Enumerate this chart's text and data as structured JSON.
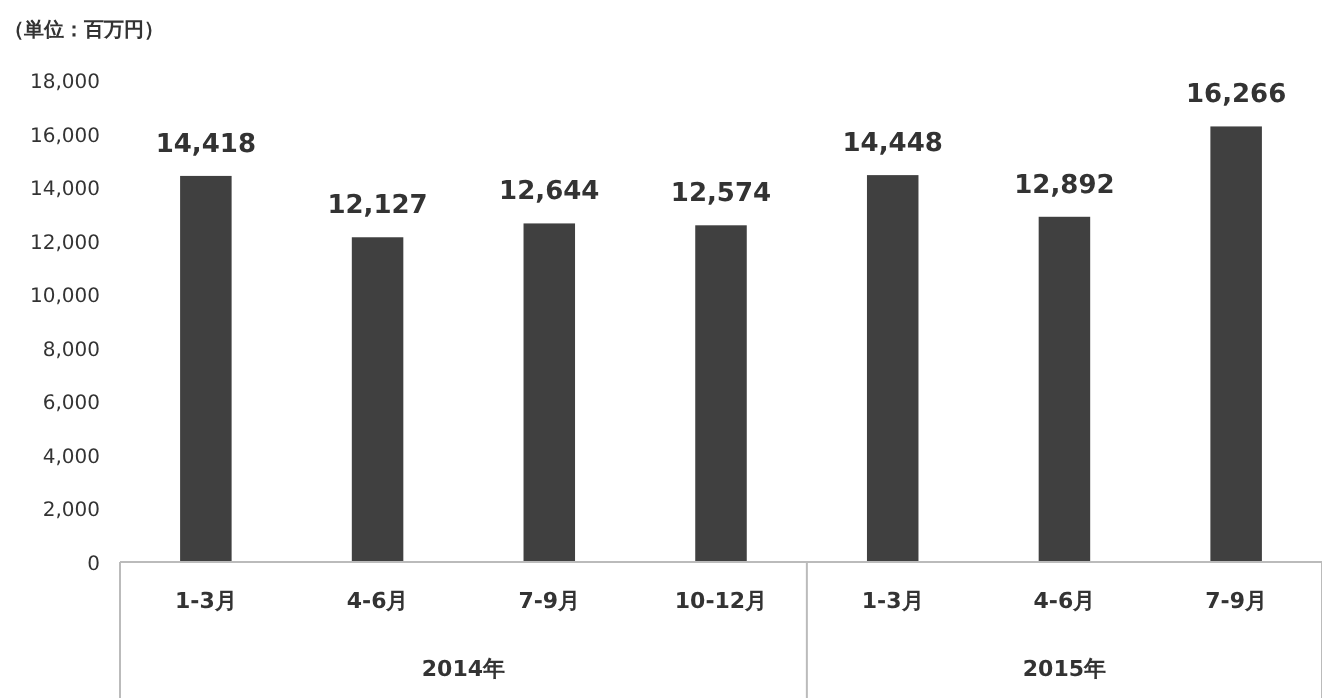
{
  "chart_data": {
    "type": "bar",
    "ylabel": "（単位：百万円）",
    "categories": [
      "1-3月",
      "4-6月",
      "7-9月",
      "10-12月",
      "1-3月",
      "4-6月",
      "7-9月"
    ],
    "values": [
      14418,
      12127,
      12644,
      12574,
      14448,
      12892,
      16266
    ],
    "value_labels": [
      "14,418",
      "12,127",
      "12,644",
      "12,574",
      "14,448",
      "12,892",
      "16,266"
    ],
    "color": "#404040",
    "ylim": [
      0,
      18000
    ],
    "yticks": [
      {
        "value": 0,
        "label": "0"
      },
      {
        "value": 2000,
        "label": "2,000"
      },
      {
        "value": 4000,
        "label": "4,000"
      },
      {
        "value": 6000,
        "label": "6,000"
      },
      {
        "value": 8000,
        "label": "8,000"
      },
      {
        "value": 10000,
        "label": "10,000"
      },
      {
        "value": 12000,
        "label": "12,000"
      },
      {
        "value": 14000,
        "label": "14,000"
      },
      {
        "value": 16000,
        "label": "16,000"
      },
      {
        "value": 18000,
        "label": "18,000"
      }
    ],
    "annotations": [
      "2014年",
      "2015年"
    ]
  }
}
